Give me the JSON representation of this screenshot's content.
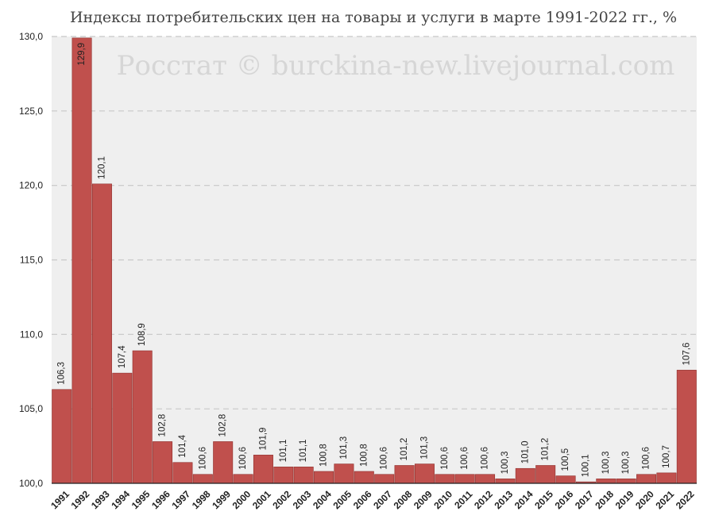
{
  "title": "Индексы потребительских цен на товары и услуги в марте 1991-2022 гг., %",
  "watermark": "Росстат © burckina-new.livejournal.com",
  "colors": {
    "bar": "#c0504d",
    "bar_edge": "#8f2f2c",
    "plot_bg": "#efefef",
    "grid": "#c8c8c8"
  },
  "chart_data": {
    "type": "bar",
    "title": "Индексы потребительских цен на товары и услуги в марте 1991-2022 гг., %",
    "xlabel": "",
    "ylabel": "",
    "ylim": [
      100,
      130
    ],
    "yticks": [
      "100,0",
      "105,0",
      "110,0",
      "115,0",
      "120,0",
      "125,0",
      "130,0"
    ],
    "grid": true,
    "categories": [
      "1991",
      "1992",
      "1993",
      "1994",
      "1995",
      "1996",
      "1997",
      "1998",
      "1999",
      "2000",
      "2001",
      "2002",
      "2003",
      "2004",
      "2005",
      "2006",
      "2007",
      "2008",
      "2009",
      "2010",
      "2011",
      "2012",
      "2013",
      "2014",
      "2015",
      "2016",
      "2017",
      "2018",
      "2019",
      "2020",
      "2021",
      "2022"
    ],
    "values": [
      106.3,
      129.9,
      120.1,
      107.4,
      108.9,
      102.8,
      101.4,
      100.6,
      102.8,
      100.6,
      101.9,
      101.1,
      101.1,
      100.8,
      101.3,
      100.8,
      100.6,
      101.2,
      101.3,
      100.6,
      100.6,
      100.6,
      100.3,
      101.0,
      101.2,
      100.5,
      100.1,
      100.3,
      100.3,
      100.6,
      100.7,
      107.6
    ],
    "labels": [
      "106,3",
      "129,9",
      "120,1",
      "107,4",
      "108,9",
      "102,8",
      "101,4",
      "100,6",
      "102,8",
      "100,6",
      "101,9",
      "101,1",
      "101,1",
      "100,8",
      "101,3",
      "100,8",
      "100,6",
      "101,2",
      "101,3",
      "100,6",
      "100,6",
      "100,6",
      "100,3",
      "101,0",
      "101,2",
      "100,5",
      "100,1",
      "100,3",
      "100,3",
      "100,6",
      "100,7",
      "107,6"
    ]
  }
}
